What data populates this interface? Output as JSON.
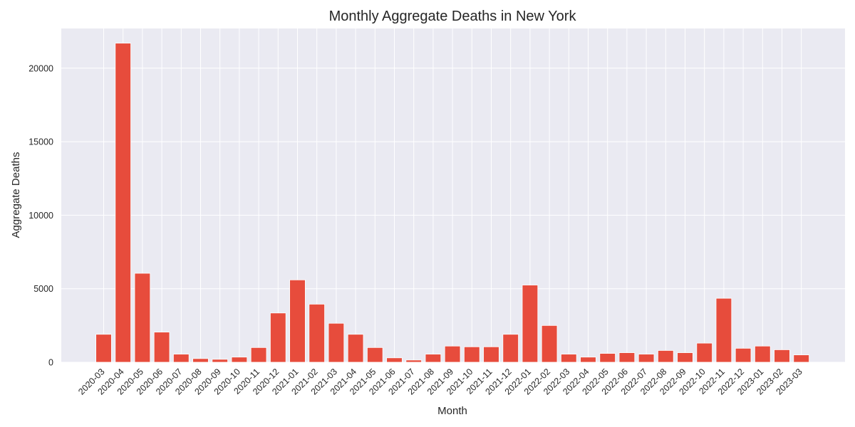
{
  "chart_data": {
    "type": "bar",
    "title": "Monthly Aggregate Deaths in New York",
    "xlabel": "Month",
    "ylabel": "Aggregate Deaths",
    "ylim": [
      0,
      22700
    ],
    "yticks": [
      0,
      5000,
      10000,
      15000,
      20000
    ],
    "grid": true,
    "bar_color": "#e74c3c",
    "background_color": "#eaeaf2",
    "grid_color": "#ffffff",
    "categories": [
      "2020-03",
      "2020-04",
      "2020-05",
      "2020-06",
      "2020-07",
      "2020-08",
      "2020-09",
      "2020-10",
      "2020-11",
      "2020-12",
      "2021-01",
      "2021-02",
      "2021-03",
      "2021-04",
      "2021-05",
      "2021-06",
      "2021-07",
      "2021-08",
      "2021-09",
      "2021-10",
      "2021-11",
      "2021-12",
      "2022-01",
      "2022-02",
      "2022-03",
      "2022-04",
      "2022-05",
      "2022-06",
      "2022-07",
      "2022-08",
      "2022-09",
      "2022-10",
      "2022-11",
      "2022-12",
      "2023-01",
      "2023-02",
      "2023-03"
    ],
    "values": [
      1900,
      21700,
      6050,
      2050,
      550,
      250,
      200,
      350,
      1000,
      3350,
      5600,
      3950,
      2650,
      1900,
      1000,
      300,
      150,
      550,
      1100,
      1050,
      1050,
      1900,
      5250,
      2500,
      550,
      350,
      600,
      650,
      550,
      800,
      650,
      1300,
      4350,
      950,
      1100,
      850,
      500
    ]
  }
}
